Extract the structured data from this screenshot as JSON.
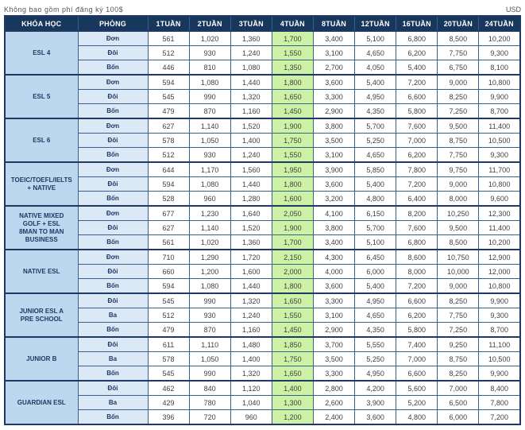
{
  "note": "Không bao gồm phí đăng ký 100$",
  "currency_label": "USD",
  "colors": {
    "header_bg": "#17375D",
    "course_bg": "#BDD7EE",
    "room_bg": "#DBE9F7",
    "highlight_bg": "#CDF2A5",
    "border": "#1F3864",
    "header_text": "#FFFFFF"
  },
  "table": {
    "headers": [
      "KHÓA HỌC",
      "PHÒNG",
      "1TUẦN",
      "2TUẦN",
      "3TUẦN",
      "4TUẦN",
      "8TUẦN",
      "12TUẦN",
      "16TUẦN",
      "20TUẦN",
      "24TUẦN"
    ],
    "highlight_column": "4TUẦN",
    "highlight_value_index": 3,
    "groups": [
      {
        "course": "ESL 4",
        "rows": [
          {
            "room": "Đơn",
            "values": [
              "561",
              "1,020",
              "1,360",
              "1,700",
              "3,400",
              "5,100",
              "6,800",
              "8,500",
              "10,200"
            ]
          },
          {
            "room": "Đôi",
            "values": [
              "512",
              "930",
              "1,240",
              "1,550",
              "3,100",
              "4,650",
              "6,200",
              "7,750",
              "9,300"
            ]
          },
          {
            "room": "Bốn",
            "values": [
              "446",
              "810",
              "1,080",
              "1,350",
              "2,700",
              "4,050",
              "5,400",
              "6,750",
              "8,100"
            ]
          }
        ]
      },
      {
        "course": "ESL 5",
        "rows": [
          {
            "room": "Đơn",
            "values": [
              "594",
              "1,080",
              "1,440",
              "1,800",
              "3,600",
              "5,400",
              "7,200",
              "9,000",
              "10,800"
            ]
          },
          {
            "room": "Đôi",
            "values": [
              "545",
              "990",
              "1,320",
              "1,650",
              "3,300",
              "4,950",
              "6,600",
              "8,250",
              "9,900"
            ]
          },
          {
            "room": "Bốn",
            "values": [
              "479",
              "870",
              "1,160",
              "1,450",
              "2,900",
              "4,350",
              "5,800",
              "7,250",
              "8,700"
            ]
          }
        ]
      },
      {
        "course": "ESL 6",
        "rows": [
          {
            "room": "Đơn",
            "values": [
              "627",
              "1,140",
              "1,520",
              "1,900",
              "3,800",
              "5,700",
              "7,600",
              "9,500",
              "11,400"
            ]
          },
          {
            "room": "Đôi",
            "values": [
              "578",
              "1,050",
              "1,400",
              "1,750",
              "3,500",
              "5,250",
              "7,000",
              "8,750",
              "10,500"
            ]
          },
          {
            "room": "Bốn",
            "values": [
              "512",
              "930",
              "1,240",
              "1,550",
              "3,100",
              "4,650",
              "6,200",
              "7,750",
              "9,300"
            ]
          }
        ]
      },
      {
        "course": "TOEIC/TOEFL/IELTS\n+ NATIVE",
        "rows": [
          {
            "room": "Đơn",
            "values": [
              "644",
              "1,170",
              "1,560",
              "1,950",
              "3,900",
              "5,850",
              "7,800",
              "9,750",
              "11,700"
            ]
          },
          {
            "room": "Đôi",
            "values": [
              "594",
              "1,080",
              "1,440",
              "1,800",
              "3,600",
              "5,400",
              "7,200",
              "9,000",
              "10,800"
            ]
          },
          {
            "room": "Bốn",
            "values": [
              "528",
              "960",
              "1,280",
              "1,600",
              "3,200",
              "4,800",
              "6,400",
              "8,000",
              "9,600"
            ]
          }
        ]
      },
      {
        "course": "NATIVE MIXED\nGOLF + ESL\n8MAN TO MAN\nBUSINESS",
        "rows": [
          {
            "room": "Đơn",
            "values": [
              "677",
              "1,230",
              "1,640",
              "2,050",
              "4,100",
              "6,150",
              "8,200",
              "10,250",
              "12,300"
            ]
          },
          {
            "room": "Đôi",
            "values": [
              "627",
              "1,140",
              "1,520",
              "1,900",
              "3,800",
              "5,700",
              "7,600",
              "9,500",
              "11,400"
            ]
          },
          {
            "room": "Bốn",
            "values": [
              "561",
              "1,020",
              "1,360",
              "1,700",
              "3,400",
              "5,100",
              "6,800",
              "8,500",
              "10,200"
            ]
          }
        ]
      },
      {
        "course": "NATIVE ESL",
        "rows": [
          {
            "room": "Đơn",
            "values": [
              "710",
              "1,290",
              "1,720",
              "2,150",
              "4,300",
              "6,450",
              "8,600",
              "10,750",
              "12,900"
            ]
          },
          {
            "room": "Đôi",
            "values": [
              "660",
              "1,200",
              "1,600",
              "2,000",
              "4,000",
              "6,000",
              "8,000",
              "10,000",
              "12,000"
            ]
          },
          {
            "room": "Bốn",
            "values": [
              "594",
              "1,080",
              "1,440",
              "1,800",
              "3,600",
              "5,400",
              "7,200",
              "9,000",
              "10,800"
            ]
          }
        ]
      },
      {
        "course": "JUNIOR ESL A\nPRE SCHOOL",
        "rows": [
          {
            "room": "Đôi",
            "values": [
              "545",
              "990",
              "1,320",
              "1,650",
              "3,300",
              "4,950",
              "6,600",
              "8,250",
              "9,900"
            ]
          },
          {
            "room": "Ba",
            "values": [
              "512",
              "930",
              "1,240",
              "1,550",
              "3,100",
              "4,650",
              "6,200",
              "7,750",
              "9,300"
            ]
          },
          {
            "room": "Bốn",
            "values": [
              "479",
              "870",
              "1,160",
              "1,450",
              "2,900",
              "4,350",
              "5,800",
              "7,250",
              "8,700"
            ]
          }
        ]
      },
      {
        "course": "JUNIOR B",
        "rows": [
          {
            "room": "Đôi",
            "values": [
              "611",
              "1,110",
              "1,480",
              "1,850",
              "3,700",
              "5,550",
              "7,400",
              "9,250",
              "11,100"
            ]
          },
          {
            "room": "Ba",
            "values": [
              "578",
              "1,050",
              "1,400",
              "1,750",
              "3,500",
              "5,250",
              "7,000",
              "8,750",
              "10,500"
            ]
          },
          {
            "room": "Bốn",
            "values": [
              "545",
              "990",
              "1,320",
              "1,650",
              "3,300",
              "4,950",
              "6,600",
              "8,250",
              "9,900"
            ]
          }
        ]
      },
      {
        "course": "GUARDIAN ESL",
        "rows": [
          {
            "room": "Đôi",
            "values": [
              "462",
              "840",
              "1,120",
              "1,400",
              "2,800",
              "4,200",
              "5,600",
              "7,000",
              "8,400"
            ]
          },
          {
            "room": "Ba",
            "values": [
              "429",
              "780",
              "1,040",
              "1,300",
              "2,600",
              "3,900",
              "5,200",
              "6,500",
              "7,800"
            ]
          },
          {
            "room": "Bốn",
            "values": [
              "396",
              "720",
              "960",
              "1,200",
              "2,400",
              "3,600",
              "4,800",
              "6,000",
              "7,200"
            ]
          }
        ]
      }
    ]
  }
}
